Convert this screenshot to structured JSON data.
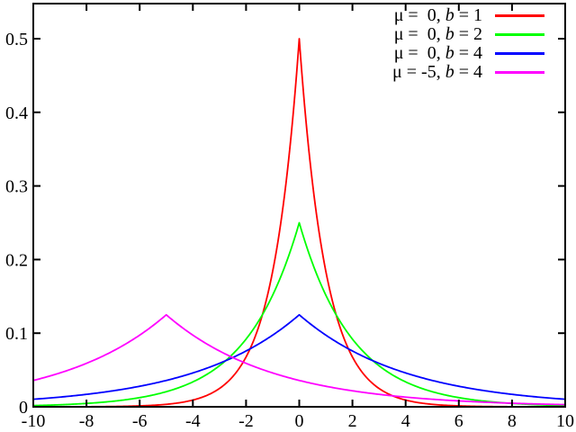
{
  "figure": {
    "background": "#ffffff",
    "axis_color": "#000000"
  },
  "chart_data": {
    "type": "line",
    "title": "",
    "subtitle": "",
    "xlabel": "",
    "ylabel": "",
    "grid": false,
    "legend_position": "top-right",
    "xlim": [
      -10,
      10
    ],
    "ylim": [
      0,
      0.548
    ],
    "x_ticks": [
      -10,
      -8,
      -6,
      -4,
      -2,
      0,
      2,
      4,
      6,
      8,
      10
    ],
    "x_tick_labels": [
      "-10",
      "-8",
      "-6",
      "-4",
      "-2",
      "0",
      "2",
      "4",
      "6",
      "8",
      "10"
    ],
    "y_ticks": [
      0,
      0.1,
      0.2,
      0.3,
      0.4,
      0.5
    ],
    "y_tick_labels": [
      "0",
      "0.1",
      "0.2",
      "0.3",
      "0.4",
      "0.5"
    ],
    "formula": "Laplace probability density f(x) = exp(-|x - mu| / b) / (2 b)",
    "sampling": {
      "x_start": -10,
      "x_end": 10,
      "step": 0.05
    },
    "series": [
      {
        "name": "mu=0 b=1",
        "mu": 0,
        "b": 1,
        "peak_x": 0,
        "peak_y": 0.5,
        "color": "#ff0000",
        "legend_mu_text": " 0",
        "legend_b_text": "1"
      },
      {
        "name": "mu=0 b=2",
        "mu": 0,
        "b": 2,
        "peak_x": 0,
        "peak_y": 0.25,
        "color": "#00ff00",
        "legend_mu_text": " 0",
        "legend_b_text": "2"
      },
      {
        "name": "mu=0 b=4",
        "mu": 0,
        "b": 4,
        "peak_x": 0,
        "peak_y": 0.125,
        "color": "#0000ff",
        "legend_mu_text": " 0",
        "legend_b_text": "4"
      },
      {
        "name": "mu=-5 b=4",
        "mu": -5,
        "b": 4,
        "peak_x": -5,
        "peak_y": 0.125,
        "color": "#ff00ff",
        "legend_mu_text": "-5",
        "legend_b_text": "4"
      }
    ],
    "legend_label_template": {
      "mu_prefix": "μ = ",
      "separator": ", ",
      "b_symbol": "b",
      "equals": " = "
    }
  }
}
